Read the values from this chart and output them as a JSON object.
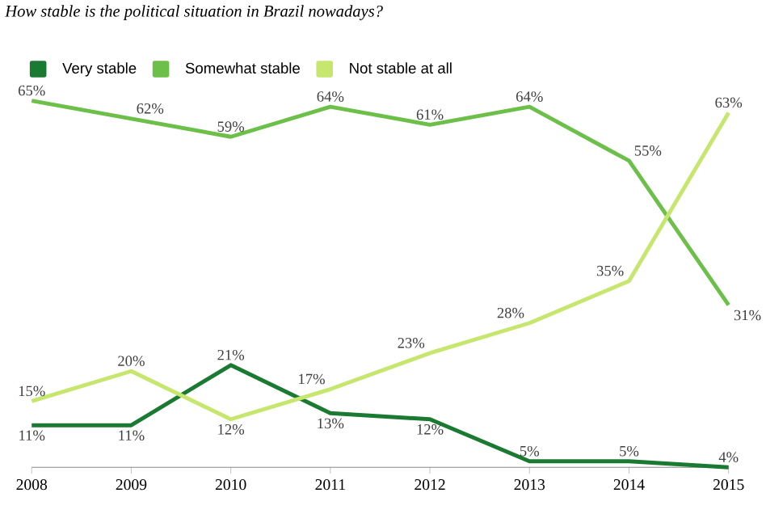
{
  "chart_data": {
    "type": "line",
    "title": "How stable is the political situation in Brazil nowadays?",
    "x": [
      2008,
      2009,
      2010,
      2011,
      2012,
      2013,
      2014,
      2015
    ],
    "xlim": [
      2008,
      2015
    ],
    "xticks": [
      2008,
      2009,
      2010,
      2011,
      2012,
      2013,
      2014,
      2015
    ],
    "legend": "top left",
    "grid": false,
    "marker": "none",
    "line_style": "solid",
    "series": [
      {
        "name": "Very stable",
        "color": "#1b7a31",
        "values": [
          11,
          11,
          21,
          13,
          12,
          5,
          5,
          4
        ],
        "value_labels": [
          "11%",
          "11%",
          "21%",
          "13%",
          "12%",
          "5%",
          "5%",
          "4%"
        ]
      },
      {
        "name": "Somewhat stable",
        "color": "#6cc04a",
        "values": [
          65,
          62,
          59,
          64,
          61,
          64,
          55,
          31
        ],
        "value_labels": [
          "65%",
          "62%",
          "59%",
          "64%",
          "61%",
          "64%",
          "55%",
          "31%"
        ]
      },
      {
        "name": "Not stable at all",
        "color": "#c6e66e",
        "values": [
          15,
          20,
          12,
          17,
          23,
          28,
          35,
          63
        ],
        "value_labels": [
          "15%",
          "20%",
          "12%",
          "17%",
          "23%",
          "28%",
          "35%",
          "63%"
        ]
      }
    ]
  }
}
